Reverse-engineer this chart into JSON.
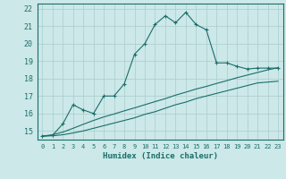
{
  "xlabel": "Humidex (Indice chaleur)",
  "xlim": [
    -0.5,
    23.5
  ],
  "ylim": [
    14.5,
    22.3
  ],
  "yticks": [
    15,
    16,
    17,
    18,
    19,
    20,
    21,
    22
  ],
  "xticks": [
    0,
    1,
    2,
    3,
    4,
    5,
    6,
    7,
    8,
    9,
    10,
    11,
    12,
    13,
    14,
    15,
    16,
    17,
    18,
    19,
    20,
    21,
    22,
    23
  ],
  "bg_color": "#cce8e8",
  "grid_color": "#aacccc",
  "line_color": "#1a6e6a",
  "line1_x": [
    0,
    1,
    2,
    3,
    4,
    5,
    6,
    7,
    8,
    9,
    10,
    11,
    12,
    13,
    14,
    15,
    16,
    17,
    18,
    19,
    20,
    21,
    22,
    23
  ],
  "line1_y": [
    14.7,
    14.75,
    15.4,
    16.5,
    16.2,
    16.0,
    17.0,
    17.0,
    17.7,
    19.4,
    20.0,
    21.1,
    21.6,
    21.2,
    21.8,
    21.1,
    20.8,
    18.9,
    18.9,
    18.7,
    18.55,
    18.6,
    18.6,
    18.6
  ],
  "line2_x": [
    0,
    1,
    2,
    3,
    4,
    5,
    6,
    7,
    8,
    9,
    10,
    11,
    12,
    13,
    14,
    15,
    16,
    17,
    18,
    19,
    20,
    21,
    22,
    23
  ],
  "line2_y": [
    14.7,
    14.72,
    14.78,
    14.88,
    15.0,
    15.15,
    15.3,
    15.45,
    15.6,
    15.75,
    15.95,
    16.1,
    16.3,
    16.5,
    16.65,
    16.85,
    17.0,
    17.15,
    17.3,
    17.45,
    17.6,
    17.75,
    17.8,
    17.85
  ],
  "line3_x": [
    0,
    1,
    2,
    3,
    4,
    5,
    6,
    7,
    8,
    9,
    10,
    11,
    12,
    13,
    14,
    15,
    16,
    17,
    18,
    19,
    20,
    21,
    22,
    23
  ],
  "line3_y": [
    14.7,
    14.78,
    14.93,
    15.15,
    15.38,
    15.6,
    15.8,
    15.97,
    16.15,
    16.32,
    16.5,
    16.68,
    16.85,
    17.05,
    17.22,
    17.4,
    17.55,
    17.72,
    17.88,
    18.05,
    18.2,
    18.35,
    18.5,
    18.62
  ]
}
